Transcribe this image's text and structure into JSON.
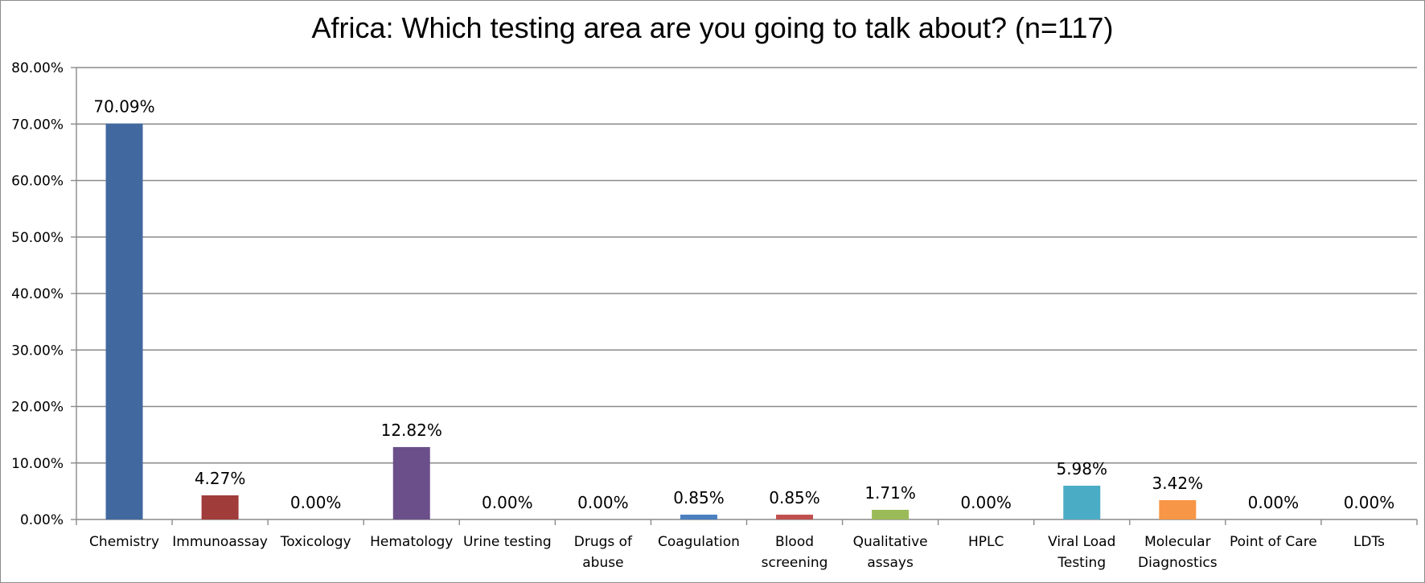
{
  "chart_data": {
    "type": "bar",
    "title": "Africa: Which testing area are you going to talk about? (n=117)",
    "xlabel": "",
    "ylabel": "",
    "ylim": [
      0,
      80
    ],
    "yticks": [
      "0.00%",
      "10.00%",
      "20.00%",
      "30.00%",
      "40.00%",
      "50.00%",
      "60.00%",
      "70.00%",
      "80.00%"
    ],
    "grid": true,
    "legend": "none",
    "categories": [
      "Chemistry",
      "Immunoassay",
      "Toxicology",
      "Hematology",
      "Urine testing",
      "Drugs of abuse",
      "Coagulation",
      "Blood screening",
      "Qualitative assays",
      "HPLC",
      "Viral Load Testing",
      "Molecular Diagnostics",
      "Point of Care",
      "LDTs"
    ],
    "category_lines": [
      [
        "Chemistry"
      ],
      [
        "Immunoassay"
      ],
      [
        "Toxicology"
      ],
      [
        "Hematology"
      ],
      [
        "Urine testing"
      ],
      [
        "Drugs of",
        "abuse"
      ],
      [
        "Coagulation"
      ],
      [
        "Blood",
        "screening"
      ],
      [
        "Qualitative",
        "assays"
      ],
      [
        "HPLC"
      ],
      [
        "Viral Load",
        "Testing"
      ],
      [
        "Molecular",
        "Diagnostics"
      ],
      [
        "Point of Care"
      ],
      [
        "LDTs"
      ]
    ],
    "values": [
      70.09,
      4.27,
      0,
      12.82,
      0,
      0,
      0.85,
      0.85,
      1.71,
      0,
      5.98,
      3.42,
      0,
      0
    ],
    "data_labels": [
      "70.09%",
      "4.27%",
      "0.00%",
      "12.82%",
      "0.00%",
      "0.00%",
      "0.85%",
      "0.85%",
      "1.71%",
      "0.00%",
      "5.98%",
      "3.42%",
      "0.00%",
      "0.00%"
    ],
    "colors": [
      "#4169a0",
      "#a03c3a",
      "#8aa44a",
      "#6b4f8a",
      "#3fa3bd",
      "#f29446",
      "#4a7fc0",
      "#c0504d",
      "#9bbb59",
      "#8064a2",
      "#4bacc6",
      "#f79646",
      "#4f81bd",
      "#c0504d"
    ]
  }
}
